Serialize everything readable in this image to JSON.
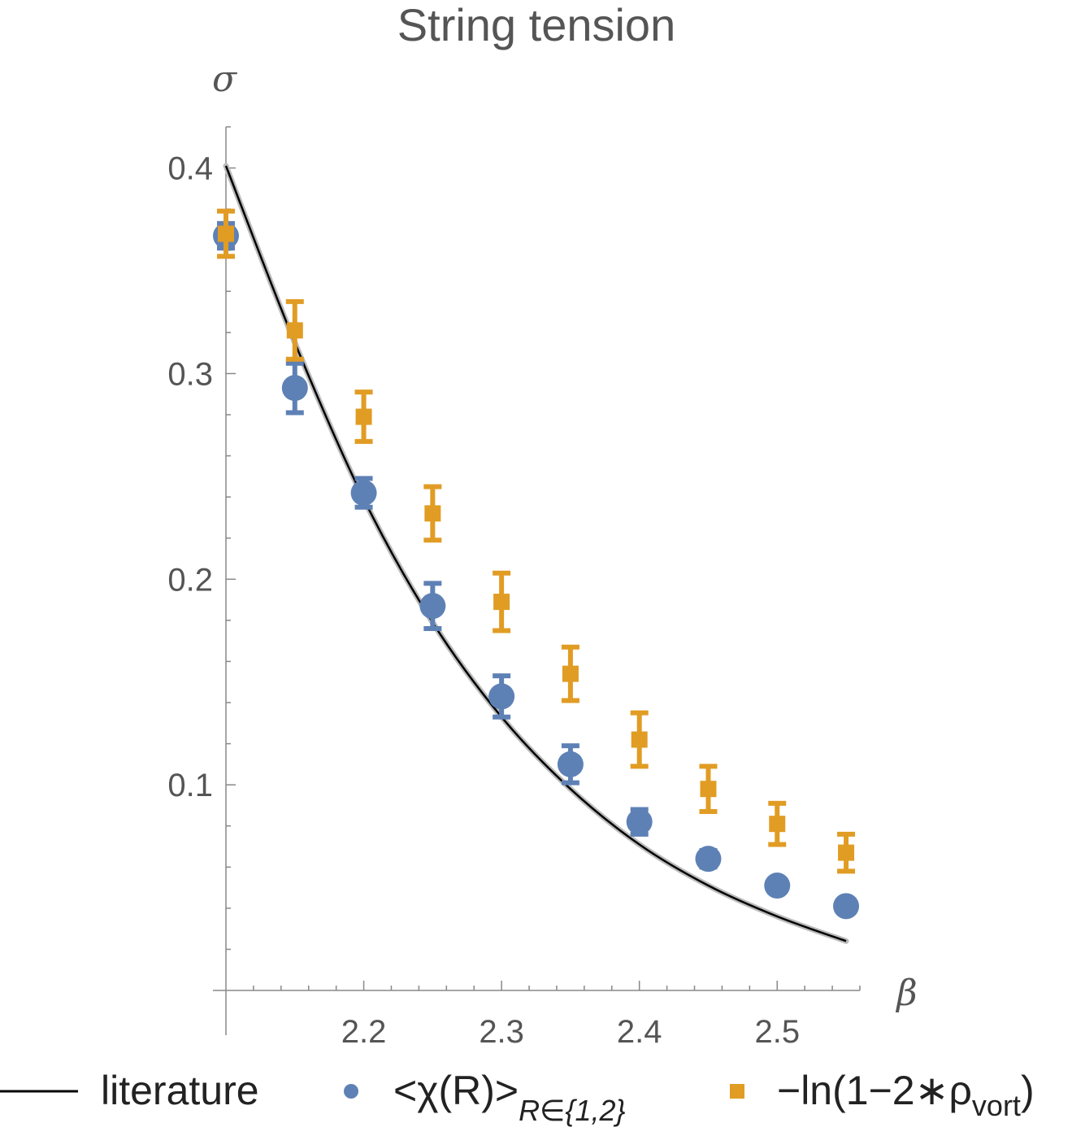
{
  "chart_data": {
    "type": "scatter",
    "title": "String tension",
    "xlabel": "β",
    "ylabel": "σ",
    "xlim": [
      2.1,
      2.56
    ],
    "ylim": [
      0.0,
      0.42
    ],
    "xticks": [
      2.2,
      2.3,
      2.4,
      2.5
    ],
    "xtick_labels": [
      "2.2",
      "2.3",
      "2.4",
      "2.5"
    ],
    "yticks": [
      0.1,
      0.2,
      0.3,
      0.4
    ],
    "ytick_labels": [
      "0.1",
      "0.2",
      "0.3",
      "0.4"
    ],
    "legend_position": "bottom",
    "series": [
      {
        "name": "literature",
        "kind": "line",
        "color": "#000000",
        "x": [
          2.1,
          2.15,
          2.2,
          2.25,
          2.3,
          2.35,
          2.4,
          2.45,
          2.5,
          2.55
        ],
        "y": [
          0.401,
          0.315,
          0.239,
          0.179,
          0.133,
          0.098,
          0.071,
          0.051,
          0.036,
          0.024
        ]
      },
      {
        "name": "<χ(R)>",
        "name_subscript": "R∈{1,2}",
        "kind": "points",
        "marker": "circle",
        "color": "#5E81B5",
        "x": [
          2.1,
          2.15,
          2.2,
          2.25,
          2.3,
          2.35,
          2.4,
          2.45,
          2.5,
          2.55
        ],
        "y": [
          0.367,
          0.293,
          0.242,
          0.187,
          0.143,
          0.11,
          0.082,
          0.064,
          0.051,
          0.041
        ],
        "yerr": [
          0.006,
          0.012,
          0.007,
          0.011,
          0.01,
          0.009,
          0.006,
          0.004,
          0.003,
          0.003
        ]
      },
      {
        "name": "−ln(1−2∗ρ",
        "name_subscript": "vort",
        "name_suffix": ")",
        "kind": "points",
        "marker": "square",
        "color": "#E19C24",
        "x": [
          2.1,
          2.15,
          2.2,
          2.25,
          2.3,
          2.35,
          2.4,
          2.45,
          2.5,
          2.55
        ],
        "y": [
          0.368,
          0.321,
          0.279,
          0.232,
          0.189,
          0.154,
          0.122,
          0.098,
          0.081,
          0.067
        ],
        "yerr": [
          0.011,
          0.014,
          0.012,
          0.013,
          0.014,
          0.013,
          0.013,
          0.011,
          0.01,
          0.009
        ]
      }
    ]
  }
}
